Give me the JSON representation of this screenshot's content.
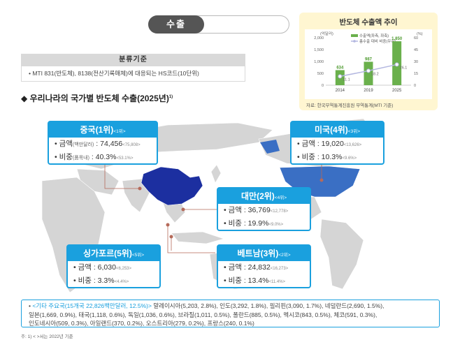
{
  "header": {
    "pill_label": "수출"
  },
  "classification": {
    "title": "분류기준",
    "text": "• MTI 831(반도체), 8138(전산기록매체)에 대응되는 HS코드(10단위)"
  },
  "section": {
    "title": "◆ 우리나라의 국가별 반도체 수출(2025년)",
    "sup": "1)"
  },
  "mini_chart": {
    "title": "반도체 수출액 추이",
    "source": "자료: 한국무역통계진흥원 무역통계(MTI 기준)",
    "left_unit": "(억달러)",
    "right_unit": "(%)",
    "legend_bar": "수출액(좌측, 좌축)",
    "legend_line": "총수출 대비 비중(우축)",
    "left_ticks": [
      "2,000",
      "1,500",
      "1,000",
      "500",
      "0"
    ],
    "right_ticks": [
      "60",
      "45",
      "30",
      "15",
      "0"
    ],
    "colors": {
      "bar": "#6ab04c",
      "line": "#b3b7e0",
      "panel": "#fff6d1"
    }
  },
  "chart_data": {
    "type": "bar",
    "title": "반도체 수출액 추이",
    "categories": [
      "2014",
      "2019",
      "2025"
    ],
    "series": [
      {
        "name": "수출액(좌측, 좌축)",
        "values": [
          634,
          987,
          1850
        ],
        "labels": [
          "634",
          "987",
          "1,850"
        ],
        "axis": "left"
      },
      {
        "name": "총수출 대비 비중(우축)",
        "values": [
          11.1,
          18.2,
          26.1
        ],
        "labels": [
          "11.1",
          "18.2",
          "26.1"
        ],
        "axis": "right",
        "kind": "line"
      }
    ],
    "ylim": [
      0,
      2000
    ],
    "y2lim": [
      0,
      60
    ],
    "ylabel": "(억달러)",
    "y2label": "(%)"
  },
  "countries": {
    "china": {
      "name": "중국(1위)",
      "prev_rank": "<1위>",
      "amount_label": "금액",
      "amount_unit": "(백만달러)",
      "amount": ": 74,456",
      "amount_prev": "<75,808>",
      "share_label": "비중",
      "share_unit": "(품목내)",
      "share": ": 40.3%",
      "share_prev": "<53.1%>"
    },
    "usa": {
      "name": "미국(4위)",
      "prev_rank": "<3위>",
      "amount_label": "금액",
      "amount": ": 19,020",
      "amount_prev": "<13,626>",
      "share_label": "비중",
      "share": ": 10.3%",
      "share_prev": "<9.6%>"
    },
    "taiwan": {
      "name": "대만(2위)",
      "prev_rank": "<4위>",
      "amount_label": "금액",
      "amount": ": 36,769",
      "amount_prev": "<12,778>",
      "share_label": "비중",
      "share": ": 19.9%",
      "share_prev": "<9.0%>"
    },
    "singapore": {
      "name": "싱가포르(5위)",
      "prev_rank": "<5위>",
      "amount_label": "금액",
      "amount": ": 6,030",
      "amount_prev": "<6,253>",
      "share_label": "비중",
      "share": ": 3.3%",
      "share_prev": "<4.4%>"
    },
    "vietnam": {
      "name": "베트남(3위)",
      "prev_rank": "<2위>",
      "amount_label": "금액",
      "amount": ": 24,832",
      "amount_prev": "<16,273>",
      "share_label": "비중",
      "share": ": 13.4%",
      "share_prev": "<11.4%>"
    }
  },
  "notes": {
    "lead": "• ",
    "highlight": "<기타 주요국",
    "highlight_detail": "(15개국 22,826백만달러, 12.5%)>",
    "line1": " 말레이시아(5,203, 2.8%), 인도(3,292, 1.8%), 필리핀(3,090, 1.7%), 네덜란드(2,690, 1.5%),",
    "line2": "일본(1,669, 0.9%), 태국(1,118, 0.6%), 독일(1,036, 0.6%), 브라질(1,011, 0.5%), 폴란드(885, 0.5%), 멕시코(843, 0.5%), 체코(591, 0.3%),",
    "line3": "인도네시아(509, 0.3%), 아일랜드(370, 0.2%), 오스트리아(279, 0.2%), 프랑스(240, 0.1%)"
  },
  "footnote": "주: 1) < >서는 2022년 기준",
  "colors": {
    "accent": "#1aa0de",
    "china": "#1c2fa0",
    "usa": "#3a6fc4",
    "map_land": "#d5d5d5",
    "connector": "#b56a5a"
  }
}
